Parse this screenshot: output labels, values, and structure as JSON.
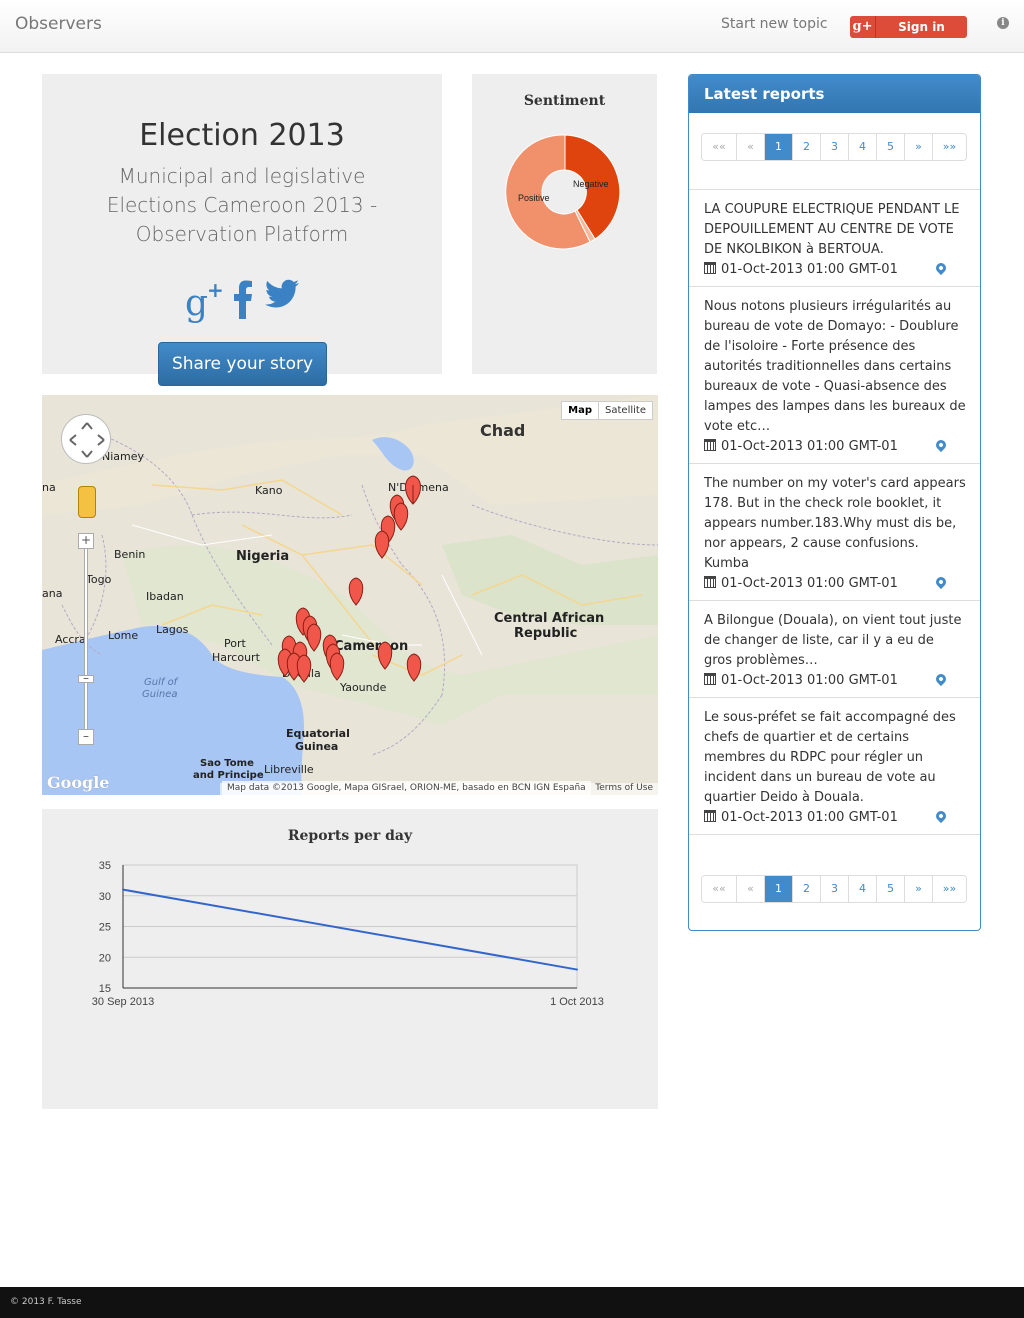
{
  "nav": {
    "brand": "Observers",
    "start_topic": "Start new topic",
    "signin": "Sign in",
    "gplus_glyph": "g+",
    "info_glyph": "i"
  },
  "hero": {
    "title": "Election 2013",
    "subtitle": "Municipal and legislative Elections Cameroon 2013 - Observation Platform",
    "share_label": "Share your story",
    "social": [
      "google-plus-icon",
      "facebook-icon",
      "twitter-icon"
    ]
  },
  "sentiment_chart": {
    "title": "Sentiment",
    "labels": [
      "Negative",
      "Positive"
    ],
    "colors": {
      "negative": "#e0440e",
      "positive": "#f0916b",
      "other": "#f4b89c"
    }
  },
  "chart_data": {
    "type": "line",
    "title": "Reports per day",
    "categories": [
      "30 Sep 2013",
      "1 Oct 2013"
    ],
    "series": [
      {
        "values": [
          31,
          18
        ]
      }
    ],
    "ylim": [
      15,
      35
    ],
    "yticks": [
      "35",
      "30",
      "25",
      "20",
      "15"
    ],
    "grid": true,
    "color": "#3366cc"
  },
  "map": {
    "type_buttons": [
      "Map",
      "Satellite"
    ],
    "attribution": "Map data ©2013 Google, Mapa GISrael, ORION-ME, basado en BCN IGN España",
    "terms": "Terms of Use",
    "logo": "Google",
    "labels": {
      "chad": "Chad",
      "niamey": "Niamey",
      "kano": "Kano",
      "ndjamena": "N'Djamena",
      "nigeria": "Nigeria",
      "benin": "Benin",
      "togo": "Togo",
      "ibadan": "Ibadan",
      "lagos": "Lagos",
      "lome": "Lome",
      "accra": "Accra",
      "port": "Port",
      "harcourt": "Harcourt",
      "car": "Central African",
      "car2": "Republic",
      "cameroon": "Cameroon",
      "douala": "Douala",
      "yaounde": "Yaounde",
      "gulf": "Gulf of",
      "guinea": "Guinea",
      "eqguinea": "Equatorial",
      "eqguinea2": "Guinea",
      "saotome": "Sao Tome",
      "principe": "and Principe",
      "libreville": "Libreville",
      "ghana": "ana",
      "na": "na"
    }
  },
  "reports": {
    "title": "Latest reports",
    "pager": [
      "««",
      "«",
      "1",
      "2",
      "3",
      "4",
      "5",
      "»",
      "»»"
    ],
    "items": [
      {
        "text": "LA COUPURE ELECTRIQUE PENDANT LE DEPOUILLEMENT AU CENTRE DE VOTE DE NKOLBIKON à BERTOUA.",
        "date": "01-Oct-2013 01:00 GMT-01"
      },
      {
        "text": "Nous notons plusieurs irrégularités au bureau de vote de Domayo: - Doublure de l'isoloire - Forte présence des autorités traditionnelles dans certains bureaux de vote - Quasi-absence des lampes des lampes dans les bureaux de vote etc…",
        "date": "01-Oct-2013 01:00 GMT-01"
      },
      {
        "text": "The number on my voter's card appears 178. But in the check role booklet, it appears number.183.Why must dis be, nor appears, 2 cause confusions. Kumba",
        "date": "01-Oct-2013 01:00 GMT-01"
      },
      {
        "text": "A Bilongue (Douala), on vient tout juste de changer de liste, car il y a eu de gros problèmes…",
        "date": "01-Oct-2013 01:00 GMT-01"
      },
      {
        "text": "Le sous-préfet se fait accompagné des chefs de quartier et de certains membres du RDPC pour régler un incident dans un bureau de vote au quartier Deido à Douala.",
        "date": "01-Oct-2013 01:00 GMT-01"
      }
    ]
  },
  "footer": {
    "text": "© 2013 F. Tasse"
  }
}
